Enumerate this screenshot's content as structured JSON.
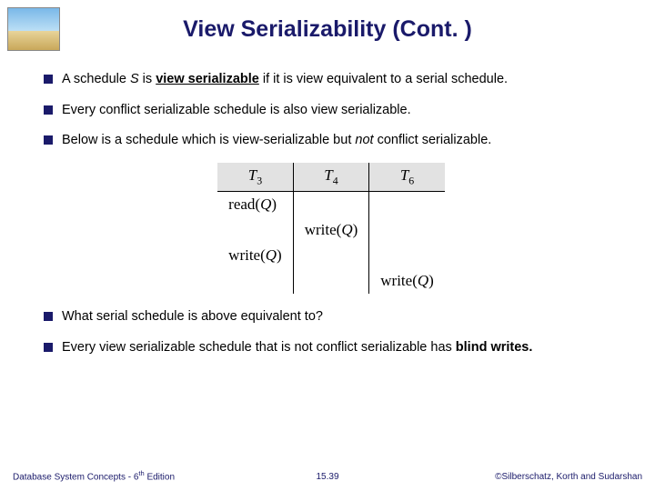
{
  "title": "View Serializability (Cont. )",
  "logo": {
    "border_color": "#888888"
  },
  "bullets": {
    "b1_pre": "A schedule ",
    "b1_s": "S",
    "b1_mid": " is ",
    "b1_term": "view serializable",
    "b1_post": " if it is view equivalent to a serial schedule.",
    "b2": "Every conflict serializable schedule is also view serializable.",
    "b3_pre": "Below is a schedule which is view-serializable but ",
    "b3_not": "not",
    "b3_post": " conflict serializable.",
    "b4": "What serial schedule is above equivalent to?",
    "b5_pre": "Every view serializable schedule that is not conflict serializable has ",
    "b5_term": "blind writes."
  },
  "schedule": {
    "headers": {
      "h1_l": "T",
      "h1_n": "3",
      "h2_l": "T",
      "h2_n": "4",
      "h3_l": "T",
      "h3_n": "6"
    },
    "ops": {
      "read": "read(",
      "readQ": "Q",
      "readC": ")",
      "write": "write(",
      "writeQ": "Q",
      "writeC": ")"
    },
    "colors": {
      "header_bg": "#e2e2e2",
      "border": "#000000"
    }
  },
  "footer": {
    "left_pre": "Database System Concepts - 6",
    "left_th": "th",
    "left_post": " Edition",
    "mid": "15.39",
    "right": "©Silberschatz, Korth and Sudarshan"
  }
}
